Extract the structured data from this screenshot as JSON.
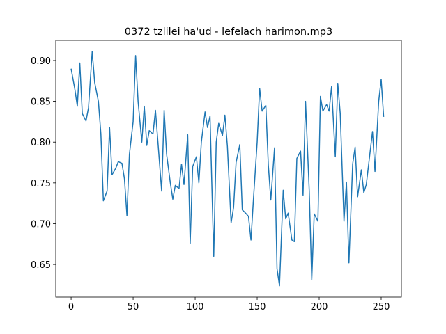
{
  "chart_data": {
    "type": "line",
    "title": "0372 tzlilei ha'ud - lefelach harimon.mp3",
    "x": [
      0,
      3,
      5,
      7,
      9,
      12,
      14,
      17,
      19,
      22,
      24,
      26,
      29,
      31,
      33,
      36,
      38,
      41,
      43,
      45,
      47,
      50,
      52,
      54,
      57,
      59,
      61,
      63,
      66,
      68,
      70,
      73,
      75,
      77,
      80,
      82,
      84,
      87,
      89,
      91,
      94,
      96,
      98,
      101,
      103,
      105,
      108,
      110,
      112,
      115,
      117,
      119,
      122,
      124,
      126,
      129,
      131,
      133,
      136,
      138,
      140,
      143,
      145,
      147,
      150,
      152,
      154,
      157,
      159,
      161,
      164,
      166,
      168,
      171,
      173,
      175,
      178,
      180,
      182,
      185,
      187,
      189,
      192,
      194,
      196,
      199,
      201,
      203,
      206,
      208,
      210,
      213,
      215,
      217,
      220,
      222,
      224,
      227,
      229,
      231,
      234,
      236,
      238,
      241,
      243,
      245,
      248,
      250,
      252
    ],
    "series": [
      {
        "name": null,
        "color": "#1f77b4",
        "values": [
          0.89,
          0.865,
          0.844,
          0.897,
          0.835,
          0.826,
          0.842,
          0.911,
          0.873,
          0.85,
          0.81,
          0.728,
          0.74,
          0.818,
          0.76,
          0.768,
          0.776,
          0.774,
          0.755,
          0.71,
          0.785,
          0.825,
          0.906,
          0.85,
          0.8,
          0.844,
          0.796,
          0.814,
          0.81,
          0.839,
          0.8,
          0.74,
          0.839,
          0.785,
          0.75,
          0.73,
          0.747,
          0.743,
          0.773,
          0.748,
          0.809,
          0.676,
          0.77,
          0.782,
          0.75,
          0.8,
          0.837,
          0.818,
          0.832,
          0.66,
          0.8,
          0.823,
          0.808,
          0.833,
          0.795,
          0.701,
          0.72,
          0.775,
          0.797,
          0.717,
          0.714,
          0.709,
          0.68,
          0.73,
          0.8,
          0.866,
          0.838,
          0.845,
          0.772,
          0.729,
          0.793,
          0.645,
          0.624,
          0.741,
          0.706,
          0.713,
          0.68,
          0.678,
          0.78,
          0.789,
          0.735,
          0.85,
          0.74,
          0.631,
          0.712,
          0.703,
          0.856,
          0.838,
          0.846,
          0.838,
          0.868,
          0.782,
          0.872,
          0.835,
          0.703,
          0.751,
          0.652,
          0.773,
          0.794,
          0.733,
          0.766,
          0.738,
          0.748,
          0.787,
          0.813,
          0.764,
          0.85,
          0.877,
          0.831
        ]
      }
    ],
    "xlim": [
      -12.4,
      266.3
    ],
    "ylim": [
      0.61,
      0.9247
    ],
    "xticks": [
      0,
      50,
      100,
      150,
      200,
      250
    ],
    "yticks": [
      0.65,
      {
        "value": 0.7,
        "label": "0.70"
      },
      0.75,
      {
        "value": 0.8,
        "label": "0.80"
      },
      0.85,
      {
        "value": 0.9,
        "label": "0.90"
      }
    ]
  }
}
